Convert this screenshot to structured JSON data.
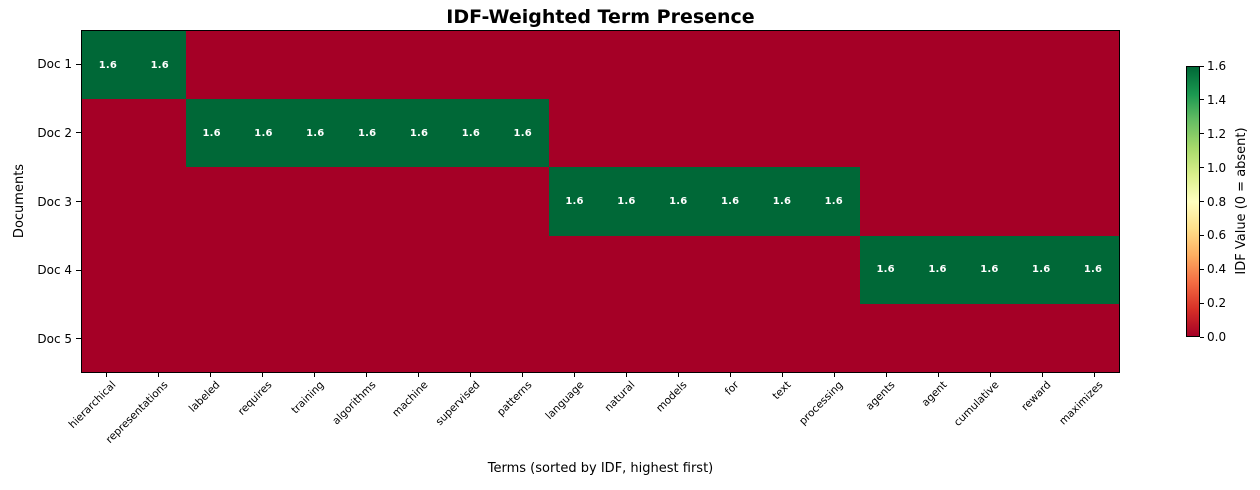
{
  "chart_data": {
    "type": "heatmap",
    "title": "IDF-Weighted Term Presence",
    "xlabel": "Terms (sorted by IDF, highest first)",
    "ylabel": "Documents",
    "x_categories": [
      "hierarchical",
      "representations",
      "labeled",
      "requires",
      "training",
      "algorithms",
      "machine",
      "supervised",
      "patterns",
      "language",
      "natural",
      "models",
      "for",
      "text",
      "processing",
      "agents",
      "agent",
      "cumulative",
      "reward",
      "maximizes"
    ],
    "y_categories": [
      "Doc 1",
      "Doc 2",
      "Doc 3",
      "Doc 4",
      "Doc 5"
    ],
    "values": [
      [
        1.6,
        1.6,
        0,
        0,
        0,
        0,
        0,
        0,
        0,
        0,
        0,
        0,
        0,
        0,
        0,
        0,
        0,
        0,
        0,
        0
      ],
      [
        0,
        0,
        1.6,
        1.6,
        1.6,
        1.6,
        1.6,
        1.6,
        1.6,
        0,
        0,
        0,
        0,
        0,
        0,
        0,
        0,
        0,
        0,
        0
      ],
      [
        0,
        0,
        0,
        0,
        0,
        0,
        0,
        0,
        0,
        1.6,
        1.6,
        1.6,
        1.6,
        1.6,
        1.6,
        0,
        0,
        0,
        0,
        0
      ],
      [
        0,
        0,
        0,
        0,
        0,
        0,
        0,
        0,
        0,
        0,
        0,
        0,
        0,
        0,
        0,
        1.6,
        1.6,
        1.6,
        1.6,
        1.6
      ],
      [
        0,
        0,
        0,
        0,
        0,
        0,
        0,
        0,
        0,
        0,
        0,
        0,
        0,
        0,
        0,
        0,
        0,
        0,
        0,
        0
      ]
    ],
    "cell_label_on_present": "1.6",
    "vmin": 0.0,
    "vmax": 1.6,
    "grid": false,
    "colormap": "RdYlGn",
    "colormap_stops": [
      "#a50026",
      "#d73027",
      "#f46d43",
      "#fdae61",
      "#fee08b",
      "#ffffbf",
      "#d9ef8b",
      "#a6d96a",
      "#66bd63",
      "#1a9850",
      "#006837"
    ],
    "colors": {
      "present_green": "#006837",
      "absent_red": "#a50026",
      "annotation_text": "#ffffff",
      "axis_border": "#000000"
    },
    "colorbar": {
      "label": "IDF Value (0 = absent)",
      "ticks": [
        0.0,
        0.2,
        0.4,
        0.6,
        0.8,
        1.0,
        1.2,
        1.4,
        1.6
      ],
      "position": "right"
    }
  }
}
